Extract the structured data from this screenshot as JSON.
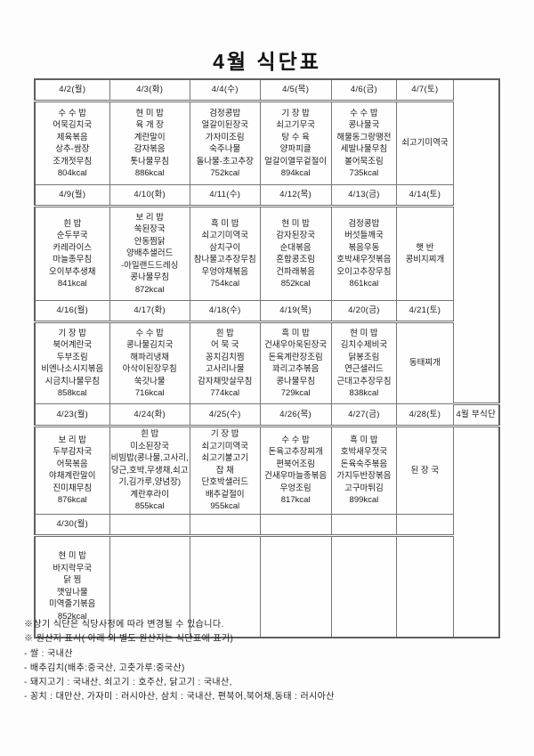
{
  "page": {
    "title": "4월  식단표"
  },
  "table": {
    "side_label": "4월 부식단",
    "weeks": [
      {
        "days": [
          "4/2(월)",
          "4/3(화)",
          "4/4(수)",
          "4/5(목)",
          "4/6(금)",
          "4/7(토)"
        ],
        "menus": [
          "수 수 밥\n어묵김치국\n제육볶음\n상추-쌈장\n조개젓무침\n804kcal",
          "현 미 밥\n육 개 장\n계란말이\n감자볶음\n톳나물무침\n886kcal",
          "검정콩밥\n얼갈이된장국\n가자미조림\n숙주나물\n돌나물-초고추장\n752kcal",
          "기 장 밥\n쇠고기무국\n탕 수 육\n양파피클\n얼갈이열무겉절이\n894kcal",
          "수 수 밥\n콩나물국\n해물동그랑땡전\n세발나물무침\n볼어묵조림\n735kcal",
          "쇠고기미역국"
        ]
      },
      {
        "days": [
          "4/9(월)",
          "4/10(화)",
          "4/11(수)",
          "4/12(목)",
          "4/13(금)",
          "4/14(토)"
        ],
        "menus": [
          "흰  밥\n순두부국\n카레라이스\n마늘종무침\n오이부추생채\n841kcal",
          "보 리 밥\n쑥된장국\n안동찜닭\n양배추샐러드\n-아일랜드드레싱\n콩나물무침\n872kcal",
          "흑 미 밥\n쇠고기미역국\n삼치구이\n참나물고추장무침\n우엉야채볶음\n754kcal",
          "현 미 밥\n감자된장국\n순대볶음\n혼합콩조림\n건파래볶음\n852kcal",
          "검정콩밥\n버섯들깨국\n볶음우동\n호박새우젓볶음\n오이고추장무침\n861kcal",
          "햇  반\n콩비지찌개"
        ]
      },
      {
        "days": [
          "4/16(월)",
          "4/17(화)",
          "4/18(수)",
          "4/19(목)",
          "4/20(금)",
          "4/21(토)"
        ],
        "menus": [
          "기 장 밥\n북어계란국\n두부조림\n비엔나소시지볶음\n시금치나물무침\n858kcal",
          "수 수 밥\n콩나물김치국\n해파리냉채\n아삭이된장무침\n쑥갓나물\n716kcal",
          "흰  밥\n어 묵 국\n꽁치김치찜\n고사리나물\n감자채맛살무침\n774kcal",
          "흑 미 밥\n건새우아욱된장국\n돈육계란장조림\n꽈리고추볶음\n콩나물무침\n729kcal",
          "현 미 밥\n김치수제비국\n닭봉조림\n연근샐러드\n근대고추장무침\n838kcal",
          "동태찌개"
        ]
      },
      {
        "days": [
          "4/23(월)",
          "4/24(화)",
          "4/25(수)",
          "4/26(목)",
          "4/27(금)",
          "4/28(토)"
        ],
        "menus": [
          "보 리 밥\n두부감자국\n어묵볶음\n야채계란말이\n진미채무침\n876kcal",
          "흰  밥\n미소된장국\n비빔밥(콩나물,고사리,당근,호박,무생채,쇠고기,김가루,양념장)\n계란후라이\n855kcal",
          "기 장 밥\n쇠고기미역국\n쇠고기불고기\n잡  채\n단호박샐러드\n배추겉절이\n955kcal",
          "수 수 밥\n돈육고추장찌개\n편북어조림\n건새우마늘종볶음\n우엉조림\n817kcal",
          "흑 미 밥\n호박새우젓국\n돈육숙주볶음\n가지두반장볶음\n고구마튀김\n899kcal",
          "된 장 국"
        ]
      },
      {
        "days": [
          "4/30(월)",
          "",
          "",
          "",
          "",
          ""
        ],
        "menus": [
          "현 미 밥\n바지락무국\n닭  찜\n깻잎나물\n미역줄기볶음\n852kcal",
          "",
          "",
          "",
          "",
          ""
        ]
      }
    ]
  },
  "footer": {
    "lines": [
      "※상기 식단은 식당사정에 따라 변경될 수 있습니다.",
      "※ 원산지 표시( 아래 외 별도 원산지는 식단표에 표기)",
      "- 쌀 : 국내산",
      "- 배추김치(배추:중국산, 고춧가루:중국산)",
      "- 돼지고기 : 국내산, 쇠고기 : 호주산, 닭고기 : 국내산,",
      "- 꽁치 : 대만산, 가자미 : 러시아산, 삼치 : 국내산, 편북어,북어채,동태 : 러시아산"
    ]
  }
}
